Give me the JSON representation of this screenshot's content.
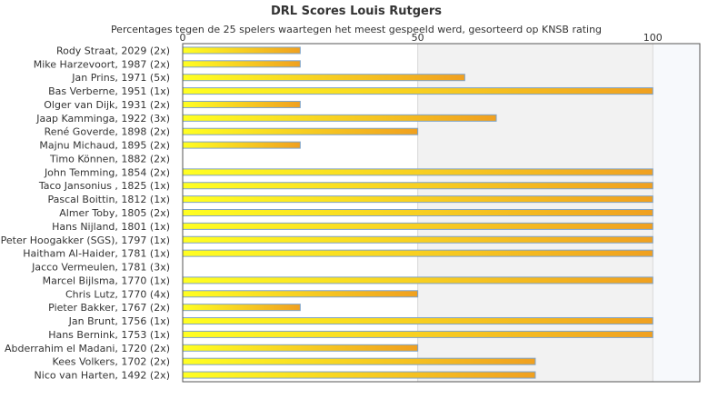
{
  "chart_data": {
    "type": "bar",
    "orientation": "horizontal",
    "title": "DRL Scores Louis Rutgers",
    "subtitle": "Percentages tegen de 25 spelers waartegen het meest gespeeld werd, gesorteerd op KNSB rating",
    "xlim": [
      0,
      110
    ],
    "x_ticks": [
      "0",
      "50",
      "100"
    ],
    "grid": true,
    "categories": [
      "Rody Straat, 2029 (2x)",
      "Mike Harzevoort, 1987 (2x)",
      "Jan Prins, 1971 (5x)",
      "Bas Verberne, 1951 (1x)",
      "Olger van Dijk, 1931 (2x)",
      "Jaap Kamminga, 1922 (3x)",
      "René Goverde, 1898 (2x)",
      "Majnu Michaud, 1895 (2x)",
      "Timo Können, 1882 (2x)",
      "John Temming, 1854 (2x)",
      "Taco Jansonius , 1825 (1x)",
      "Pascal Boittin, 1812 (1x)",
      "Almer Toby, 1805 (2x)",
      "Hans Nijland, 1801 (1x)",
      "Peter Hoogakker (SGS), 1797 (1x)",
      "Haitham Al-Haider, 1781 (1x)",
      "Jacco Vermeulen, 1781 (3x)",
      "Marcel Bijlsma, 1770 (1x)",
      "Chris Lutz, 1770 (4x)",
      "Pieter Bakker, 1767 (2x)",
      "Jan Brunt, 1756 (1x)",
      "Hans Bernink, 1753 (1x)",
      "Abderrahim el Madani, 1720 (2x)",
      "Kees Volkers, 1702 (2x)",
      "Nico van Harten, 1492 (2x)"
    ],
    "values": [
      25,
      25,
      60,
      100,
      25,
      66.7,
      50,
      25,
      0,
      100,
      100,
      100,
      100,
      100,
      100,
      100,
      0,
      100,
      50,
      25,
      100,
      100,
      50,
      75,
      75
    ],
    "colors": {
      "bar_start": "#ffff22",
      "bar_end": "#f0a020",
      "bar_border": "#7fa3c8",
      "band": "#f2f2f2",
      "band_light": "#f7f9fc",
      "grid": "#d9d9d9",
      "text": "#333333"
    }
  }
}
